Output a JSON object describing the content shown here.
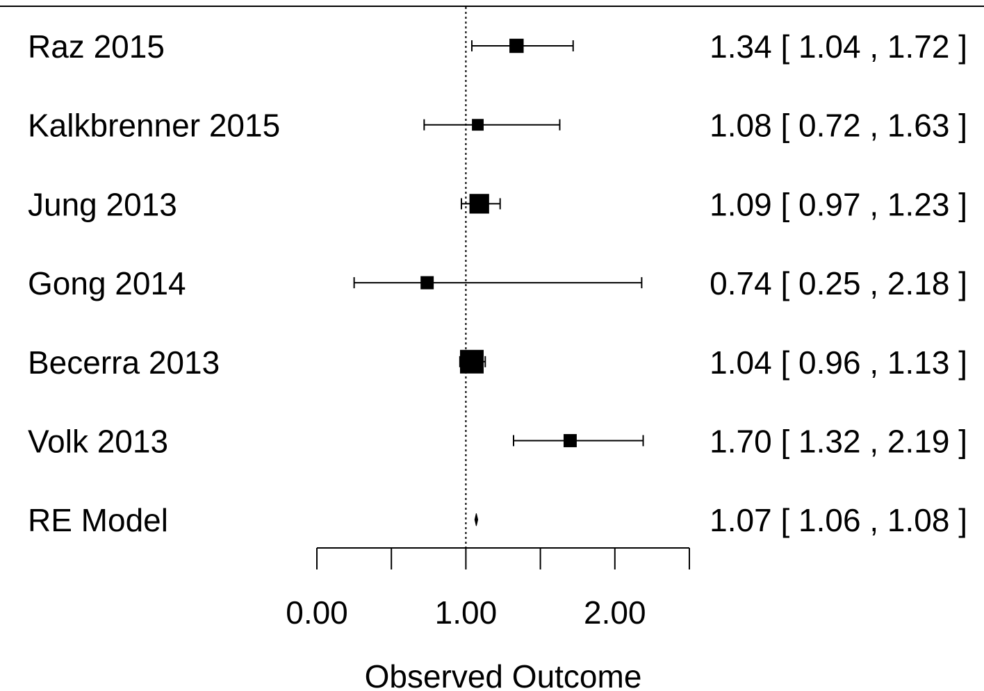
{
  "chart_data": {
    "type": "forest",
    "xlabel": "Observed Outcome",
    "xlim": [
      0,
      2.5
    ],
    "axis_ticks": [
      0,
      0.5,
      1,
      1.5,
      2,
      2.5
    ],
    "tick_labels": [
      {
        "value": 0,
        "label": "0.00"
      },
      {
        "value": 1,
        "label": "1.00"
      },
      {
        "value": 2,
        "label": "2.00"
      }
    ],
    "reference_line": 1,
    "studies": [
      {
        "name": "Raz 2015",
        "estimate": 1.34,
        "lower": 1.04,
        "upper": 1.72,
        "weight": 0.48,
        "text": "1.34 [ 1.04 , 1.72 ]"
      },
      {
        "name": "Kalkbrenner 2015",
        "estimate": 1.08,
        "lower": 0.72,
        "upper": 1.63,
        "weight": 0.34,
        "text": "1.08 [ 0.72 , 1.63 ]"
      },
      {
        "name": "Jung 2013",
        "estimate": 1.09,
        "lower": 0.97,
        "upper": 1.23,
        "weight": 0.78,
        "text": "1.09 [ 0.97 , 1.23 ]"
      },
      {
        "name": "Gong 2014",
        "estimate": 0.74,
        "lower": 0.25,
        "upper": 2.18,
        "weight": 0.42,
        "text": "0.74 [ 0.25 , 2.18 ]"
      },
      {
        "name": "Becerra 2013",
        "estimate": 1.04,
        "lower": 0.96,
        "upper": 1.13,
        "weight": 1.0,
        "text": "1.04 [ 0.96 , 1.13 ]"
      },
      {
        "name": "Volk 2013",
        "estimate": 1.7,
        "lower": 1.32,
        "upper": 2.19,
        "weight": 0.42,
        "text": "1.70 [ 1.32 , 2.19 ]"
      }
    ],
    "summary": {
      "name": "RE Model",
      "estimate": 1.07,
      "lower": 1.06,
      "upper": 1.08,
      "text": "1.07 [ 1.06 , 1.08 ]"
    }
  }
}
